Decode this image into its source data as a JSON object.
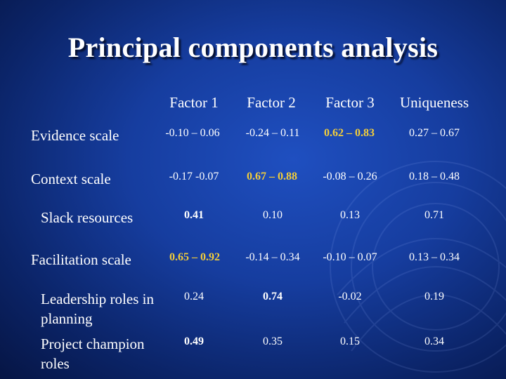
{
  "slide": {
    "title": "Principal components analysis"
  },
  "table": {
    "headers": [
      "Factor 1",
      "Factor 2",
      "Factor 3",
      "Uniqueness"
    ],
    "rows": [
      {
        "label": "Evidence scale",
        "f1": "-0.10 – 0.06",
        "f2": "-0.24 – 0.11",
        "f3": "0.62 – 0.83",
        "u": "0.27 – 0.67"
      },
      {
        "label": "Context scale",
        "f1": "-0.17 -0.07",
        "f2": "0.67 – 0.88",
        "f3": "-0.08 – 0.26",
        "u": "0.18 – 0.48"
      },
      {
        "label": "Slack resources",
        "f1": "0.41",
        "f2": "0.10",
        "f3": "0.13",
        "u": "0.71"
      },
      {
        "label": "Facilitation scale",
        "f1": "0.65 – 0.92",
        "f2": "-0.14 – 0.34",
        "f3": "-0.10 – 0.07",
        "u": "0.13 – 0.34"
      },
      {
        "label": "Leadership roles in planning",
        "f1": "0.24",
        "f2": "0.74",
        "f3": "-0.02",
        "u": "0.19"
      },
      {
        "label": "Project champion roles",
        "f1": "0.49",
        "f2": "0.35",
        "f3": "0.15",
        "u": "0.34"
      }
    ]
  },
  "colors": {
    "highlight": "#f2cd3a",
    "background": "#163d9f",
    "text": "#ffffff"
  }
}
